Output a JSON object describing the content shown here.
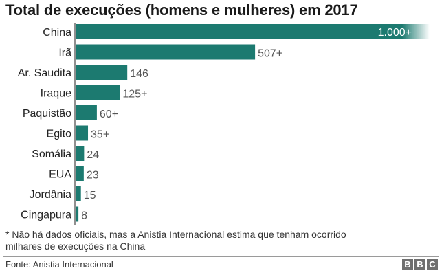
{
  "chart_data": {
    "type": "bar",
    "orientation": "horizontal",
    "title": "Total de execuções (homens e mulheres) em 2017",
    "categories": [
      "China",
      "Irã",
      "Ar. Saudita",
      "Iraque",
      "Paquistão",
      "Egito",
      "Somália",
      "EUA",
      "Jordânia",
      "Cingapura"
    ],
    "values": [
      1000,
      507,
      146,
      125,
      60,
      35,
      24,
      23,
      15,
      8
    ],
    "value_labels": [
      "1.000+",
      "507+",
      "146",
      "125+",
      "60+",
      "35+",
      "24",
      "23",
      "15",
      "8"
    ],
    "bar_color": "#1c7a70",
    "xlim": [
      0,
      1000
    ],
    "grid": false,
    "legend": "none"
  },
  "footnote": "* Não há dados oficiais, mas a Anistia Internacional estima que tenham ocorrido milhares de execuções na China",
  "source": "Fonte: Anistia Internacional",
  "logo": {
    "letters": [
      "B",
      "B",
      "C"
    ],
    "color": "#6f6f6f"
  }
}
